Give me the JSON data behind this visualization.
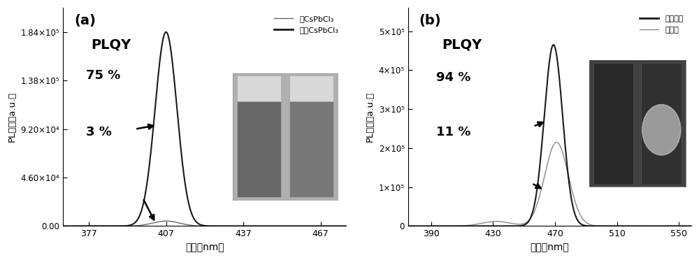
{
  "panel_a": {
    "label": "(a)",
    "peak_optimized": 407,
    "peak_pure": 407,
    "xlim": [
      367,
      477
    ],
    "xticks": [
      377,
      407,
      437,
      467
    ],
    "ylim": [
      0,
      207000.0
    ],
    "yticks": [
      0.0,
      46000.0,
      92000.0,
      138000.0,
      184000.0
    ],
    "ytick_labels": [
      "0.00",
      "4.60×10⁴",
      "9.20×10⁴",
      "1.38×10⁵",
      "1.84×10⁵"
    ],
    "ylabel": "PL强度（a.u.）",
    "xlabel": "波长（nm）",
    "legend_pure": "绯CsPbCl₃",
    "legend_optimized": "优化CsPbCl₃",
    "plqy_text": "PLQY",
    "plqy_75": "75 %",
    "plqy_3": "3 %",
    "optimized_peak_height": 184000.0,
    "pure_peak_height": 4800,
    "line_color_optimized": "#1a1a1a",
    "line_color_pure": "#666666",
    "fwhm_optimized": 10,
    "fwhm_pure": 12
  },
  "panel_b": {
    "label": "(b)",
    "peak_optimized": 469,
    "peak_pure": 471,
    "xlim": [
      375,
      558
    ],
    "xticks": [
      390,
      430,
      470,
      510,
      550
    ],
    "ylim": [
      0,
      560000.0
    ],
    "yticks": [
      0,
      100000.0,
      200000.0,
      300000.0,
      400000.0,
      500000.0
    ],
    "ytick_labels": [
      "0",
      "1×10⁵",
      "2×10⁵",
      "3×10⁵",
      "4×10⁵",
      "5×10⁵"
    ],
    "ylabel": "PL强度（a.u.）",
    "xlabel": "波长（nm）",
    "legend_optimized": "优化蓝光",
    "legend_pure": "绯蓝光",
    "plqy_text": "PLQY",
    "plqy_94": "94 %",
    "plqy_11": "11 %",
    "optimized_peak_height": 465000.0,
    "pure_peak_height": 215000.0,
    "line_color_optimized": "#1a1a1a",
    "line_color_pure": "#888888",
    "fwhm_optimized": 14,
    "fwhm_pure": 18
  },
  "fig_bg": "#ffffff",
  "axes_bg": "#ffffff"
}
